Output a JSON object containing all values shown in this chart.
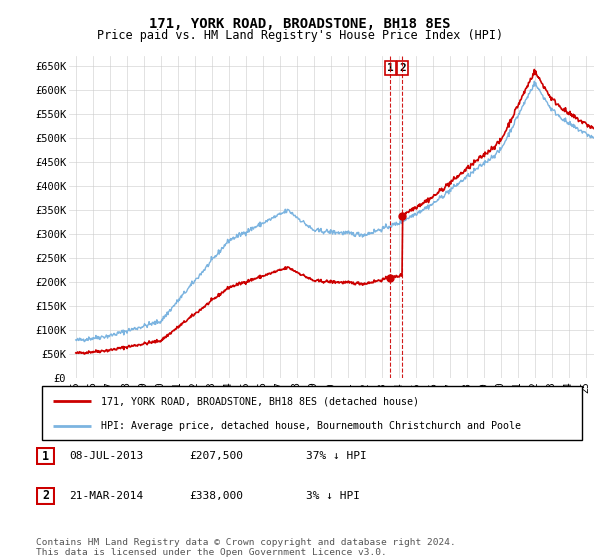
{
  "title": "171, YORK ROAD, BROADSTONE, BH18 8ES",
  "subtitle": "Price paid vs. HM Land Registry's House Price Index (HPI)",
  "legend_line1": "171, YORK ROAD, BROADSTONE, BH18 8ES (detached house)",
  "legend_line2": "HPI: Average price, detached house, Bournemouth Christchurch and Poole",
  "table_rows": [
    {
      "num": "1",
      "date": "08-JUL-2013",
      "price": "£207,500",
      "pct": "37% ↓ HPI"
    },
    {
      "num": "2",
      "date": "21-MAR-2014",
      "price": "£338,000",
      "pct": "3% ↓ HPI"
    }
  ],
  "footer": "Contains HM Land Registry data © Crown copyright and database right 2024.\nThis data is licensed under the Open Government Licence v3.0.",
  "ylim": [
    0,
    670000
  ],
  "yticks": [
    0,
    50000,
    100000,
    150000,
    200000,
    250000,
    300000,
    350000,
    400000,
    450000,
    500000,
    550000,
    600000,
    650000
  ],
  "ytick_labels": [
    "£0",
    "£50K",
    "£100K",
    "£150K",
    "£200K",
    "£250K",
    "£300K",
    "£350K",
    "£400K",
    "£450K",
    "£500K",
    "£550K",
    "£600K",
    "£650K"
  ],
  "sale1_date": 2013.52,
  "sale1_price": 207500,
  "sale2_date": 2014.22,
  "sale2_price": 338000,
  "line_color_red": "#cc0000",
  "line_color_blue": "#7cb4e0",
  "marker_color_red": "#cc0000",
  "annotation_box_color": "#cc0000",
  "background_color": "#ffffff",
  "grid_color": "#cccccc"
}
